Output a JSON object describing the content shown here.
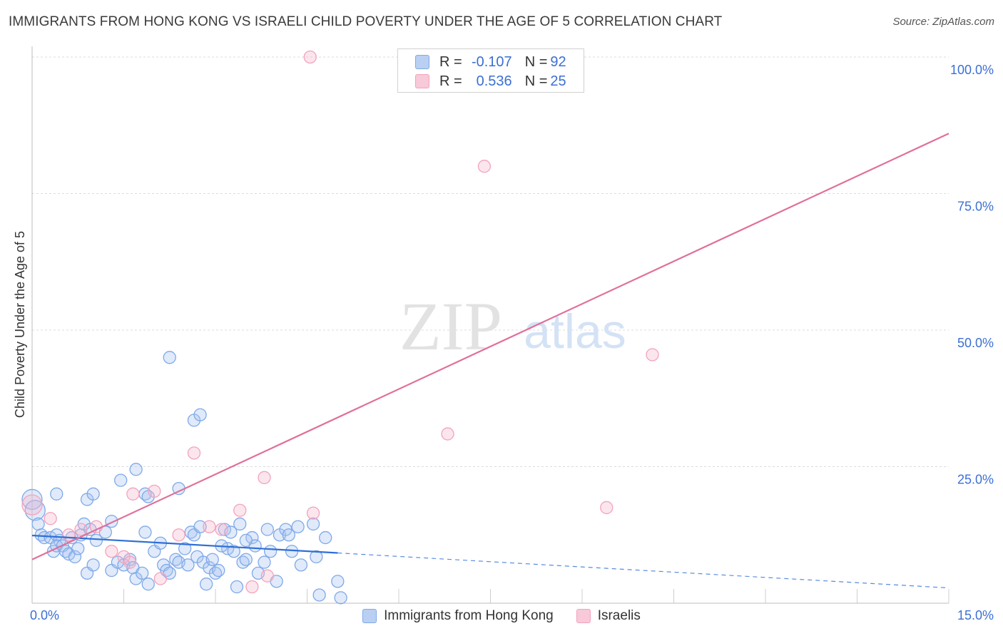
{
  "header": {
    "title": "IMMIGRANTS FROM HONG KONG VS ISRAELI CHILD POVERTY UNDER THE AGE OF 5 CORRELATION CHART",
    "source": "Source: ZipAtlas.com"
  },
  "legend": {
    "r_label": "R =",
    "n_label": "N =",
    "series": [
      {
        "name": "Immigrants from Hong Kong",
        "r": "-0.107",
        "n": "92",
        "color": "#7fa9e8",
        "fill": "#b9d0f3"
      },
      {
        "name": "Israelis",
        "r": "0.536",
        "n": "25",
        "color": "#f2a3bc",
        "fill": "#f8c9d8"
      }
    ]
  },
  "watermark": {
    "zip": "ZIP",
    "atlas": "atlas"
  },
  "chart_data": {
    "type": "scatter",
    "title": "IMMIGRANTS FROM HONG KONG VS ISRAELI CHILD POVERTY UNDER THE AGE OF 5 CORRELATION CHART",
    "xlabel": "",
    "ylabel": "Child Poverty Under the Age of 5",
    "xlim": [
      0,
      15
    ],
    "ylim": [
      0,
      100
    ],
    "x_tick_labels": [
      {
        "value": 0,
        "label": "0.0%"
      },
      {
        "value": 15,
        "label": "15.0%"
      }
    ],
    "y_tick_labels": [
      {
        "value": 25,
        "label": "25.0%"
      },
      {
        "value": 50,
        "label": "50.0%"
      },
      {
        "value": 75,
        "label": "75.0%"
      },
      {
        "value": 100,
        "label": "100.0%"
      }
    ],
    "x_grid": [
      0,
      1.5,
      3,
      4.5,
      6,
      7.5,
      9,
      10.5,
      12,
      13.5,
      15
    ],
    "y_grid": [
      25,
      50,
      75,
      100
    ],
    "series": [
      {
        "name": "Immigrants from Hong Kong",
        "color": "#7fa9e8",
        "line_color": "#2f6fd6",
        "trend": {
          "x0": 0,
          "y0": 12.4,
          "x1": 15,
          "y1": 2.8,
          "solid_until": 5.0
        },
        "points": [
          [
            0.0,
            19.0
          ],
          [
            0.05,
            17.0
          ],
          [
            0.1,
            14.5
          ],
          [
            0.15,
            12.5
          ],
          [
            0.2,
            12.0
          ],
          [
            0.3,
            12.0
          ],
          [
            0.35,
            9.5
          ],
          [
            0.4,
            12.5
          ],
          [
            0.45,
            11.5
          ],
          [
            0.4,
            10.5
          ],
          [
            0.5,
            10.5
          ],
          [
            0.55,
            9.5
          ],
          [
            0.6,
            9.0
          ],
          [
            0.65,
            12.0
          ],
          [
            0.7,
            8.5
          ],
          [
            0.75,
            10.0
          ],
          [
            0.8,
            12.5
          ],
          [
            0.85,
            14.5
          ],
          [
            0.9,
            5.5
          ],
          [
            0.95,
            13.5
          ],
          [
            1.0,
            7.0
          ],
          [
            1.05,
            11.5
          ],
          [
            0.4,
            20.0
          ],
          [
            0.9,
            19.0
          ],
          [
            1.0,
            20.0
          ],
          [
            1.3,
            15.0
          ],
          [
            1.2,
            13.0
          ],
          [
            1.3,
            6.0
          ],
          [
            1.4,
            7.5
          ],
          [
            1.5,
            7.0
          ],
          [
            1.6,
            8.0
          ],
          [
            1.65,
            6.5
          ],
          [
            1.7,
            4.5
          ],
          [
            1.8,
            5.5
          ],
          [
            1.85,
            13.0
          ],
          [
            1.9,
            3.5
          ],
          [
            2.0,
            9.5
          ],
          [
            2.1,
            11.0
          ],
          [
            2.15,
            7.0
          ],
          [
            2.2,
            6.0
          ],
          [
            2.25,
            5.5
          ],
          [
            2.35,
            8.0
          ],
          [
            2.4,
            7.5
          ],
          [
            2.5,
            10.0
          ],
          [
            2.55,
            7.0
          ],
          [
            2.6,
            13.0
          ],
          [
            2.65,
            12.5
          ],
          [
            2.7,
            8.5
          ],
          [
            2.75,
            14.0
          ],
          [
            2.8,
            7.5
          ],
          [
            2.85,
            3.5
          ],
          [
            2.9,
            6.5
          ],
          [
            2.95,
            8.0
          ],
          [
            3.0,
            5.5
          ],
          [
            3.05,
            6.0
          ],
          [
            3.15,
            13.5
          ],
          [
            3.2,
            10.0
          ],
          [
            3.25,
            13.0
          ],
          [
            3.3,
            9.5
          ],
          [
            3.35,
            3.0
          ],
          [
            3.4,
            14.5
          ],
          [
            3.45,
            7.5
          ],
          [
            3.5,
            8.0
          ],
          [
            3.6,
            12.0
          ],
          [
            3.65,
            10.5
          ],
          [
            3.7,
            5.5
          ],
          [
            3.8,
            7.5
          ],
          [
            3.85,
            13.5
          ],
          [
            3.9,
            9.5
          ],
          [
            4.0,
            4.0
          ],
          [
            4.05,
            12.5
          ],
          [
            4.15,
            13.5
          ],
          [
            4.25,
            9.5
          ],
          [
            4.35,
            14.0
          ],
          [
            4.4,
            7.0
          ],
          [
            4.6,
            14.5
          ],
          [
            4.65,
            8.5
          ],
          [
            4.7,
            1.5
          ],
          [
            4.8,
            12.0
          ],
          [
            5.0,
            4.0
          ],
          [
            5.05,
            1.0
          ],
          [
            2.25,
            45.0
          ],
          [
            2.65,
            33.5
          ],
          [
            2.75,
            34.5
          ],
          [
            2.4,
            21.0
          ],
          [
            1.7,
            24.5
          ],
          [
            1.45,
            22.5
          ],
          [
            1.85,
            20.0
          ],
          [
            1.9,
            19.5
          ],
          [
            3.1,
            10.5
          ],
          [
            3.5,
            11.5
          ],
          [
            4.2,
            12.5
          ]
        ]
      },
      {
        "name": "Israelis",
        "color": "#f2a3bc",
        "line_color": "#e0709a",
        "trend": {
          "x0": 0,
          "y0": 8.0,
          "x1": 15,
          "y1": 86.0
        },
        "points": [
          [
            4.55,
            100.0
          ],
          [
            7.4,
            80.0
          ],
          [
            10.15,
            45.5
          ],
          [
            6.8,
            31.0
          ],
          [
            2.65,
            27.5
          ],
          [
            3.8,
            23.0
          ],
          [
            2.0,
            20.5
          ],
          [
            1.65,
            20.0
          ],
          [
            3.4,
            17.0
          ],
          [
            4.6,
            16.5
          ],
          [
            9.4,
            17.5
          ],
          [
            0.0,
            18.0
          ],
          [
            0.3,
            15.5
          ],
          [
            0.6,
            12.5
          ],
          [
            0.8,
            13.5
          ],
          [
            1.05,
            14.0
          ],
          [
            1.3,
            9.5
          ],
          [
            1.5,
            8.5
          ],
          [
            1.6,
            7.5
          ],
          [
            2.1,
            4.5
          ],
          [
            2.4,
            12.5
          ],
          [
            2.9,
            14.0
          ],
          [
            3.1,
            13.5
          ],
          [
            3.85,
            5.0
          ],
          [
            3.6,
            3.0
          ]
        ]
      }
    ]
  }
}
